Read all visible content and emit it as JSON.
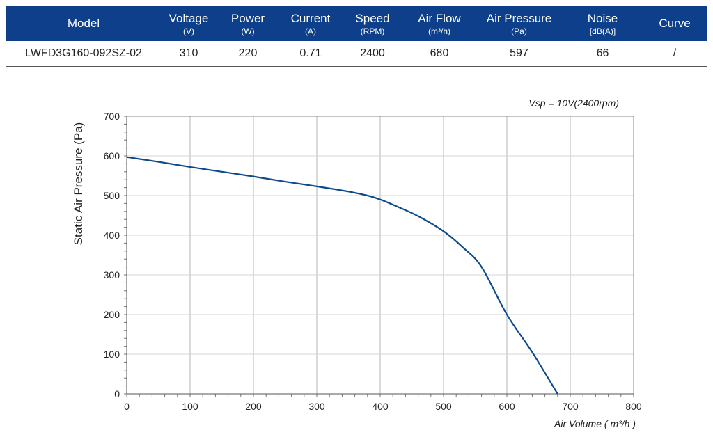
{
  "table": {
    "headers": [
      {
        "label": "Model",
        "unit": ""
      },
      {
        "label": "Voltage",
        "unit": "(V)"
      },
      {
        "label": "Power",
        "unit": "(W)"
      },
      {
        "label": "Current",
        "unit": "(A)"
      },
      {
        "label": "Speed",
        "unit": "(RPM)"
      },
      {
        "label": "Air Flow",
        "unit": "(m³/h)"
      },
      {
        "label": "Air Pressure",
        "unit": "(Pa)"
      },
      {
        "label": "Noise",
        "unit": "[dB(A)]"
      },
      {
        "label": "Curve",
        "unit": ""
      }
    ],
    "row": [
      "LWFD3G160-092SZ-02",
      "310",
      "220",
      "0.71",
      "2400",
      "680",
      "597",
      "66",
      "/"
    ],
    "header_color": "#0e3f8a"
  },
  "chart_data": {
    "type": "line",
    "annotation": "Vsp = 10V(2400rpm)",
    "xlabel": "Air Volume ( m³/h )",
    "ylabel": "Static Air Pressure  (Pa)",
    "xlim": [
      0,
      800
    ],
    "ylim": [
      0,
      700
    ],
    "x_ticks": [
      0,
      100,
      200,
      300,
      400,
      500,
      600,
      700,
      800
    ],
    "y_ticks": [
      0,
      100,
      200,
      300,
      400,
      500,
      600,
      700
    ],
    "grid": true,
    "series": [
      {
        "color": "#0d4a8c",
        "x": [
          0,
          50,
          100,
          150,
          200,
          250,
          300,
          350,
          380,
          400,
          430,
          460,
          500,
          530,
          560,
          600,
          640,
          680
        ],
        "y": [
          597,
          585,
          572,
          560,
          548,
          535,
          523,
          510,
          500,
          490,
          470,
          448,
          410,
          370,
          320,
          200,
          105,
          0
        ]
      }
    ]
  }
}
